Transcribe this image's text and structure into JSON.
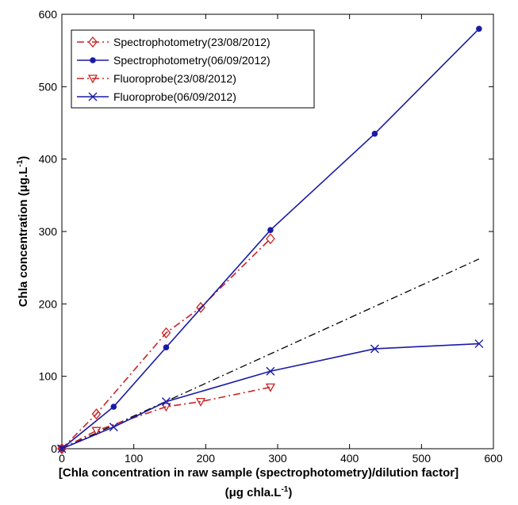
{
  "chart_data": {
    "type": "line",
    "title": "",
    "xlabel_line1": "[Chla concentration in raw sample (spectrophotometry)/dilution factor]",
    "xlabel_line2_prefix": "(μg chla.L",
    "xlabel_line2_sup": "-1",
    "xlabel_line2_suffix": ")",
    "ylabel_prefix": "Chla concentration (μg.L",
    "ylabel_sup": "-1",
    "ylabel_suffix": ")",
    "xlim": [
      0,
      600
    ],
    "ylim": [
      0,
      600
    ],
    "xticks": [
      "0",
      "100",
      "200",
      "300",
      "400",
      "500",
      "600"
    ],
    "yticks": [
      "0",
      "100",
      "200",
      "300",
      "400",
      "500",
      "600"
    ],
    "grid": false,
    "legend_position": "top-left",
    "series": [
      {
        "name": "Spectrophotometry(23/08/2012)",
        "color": "#cc2222",
        "line_style": "dashdot",
        "marker": "diamond",
        "x": [
          0,
          48,
          145,
          193,
          290
        ],
        "y": [
          0,
          48,
          160,
          195,
          290
        ]
      },
      {
        "name": "Spectrophotometry(06/09/2012)",
        "color": "#1a1aa6",
        "line_style": "solid",
        "marker": "dot",
        "x": [
          0,
          72,
          145,
          290,
          435,
          580
        ],
        "y": [
          0,
          58,
          140,
          302,
          435,
          580
        ]
      },
      {
        "name": "Fluoroprobe(23/08/2012)",
        "color": "#cc2222",
        "line_style": "dashdot",
        "marker": "triangle-down",
        "x": [
          0,
          48,
          145,
          193,
          290
        ],
        "y": [
          0,
          25,
          58,
          65,
          85
        ]
      },
      {
        "name": "Fluoroprobe(06/09/2012)",
        "color": "#1a1aa6",
        "line_style": "solid",
        "marker": "x",
        "x": [
          0,
          72,
          145,
          290,
          435,
          580
        ],
        "y": [
          0,
          30,
          65,
          107,
          138,
          145
        ]
      }
    ],
    "reference_line": {
      "color": "#000000",
      "line_style": "dashdot",
      "x": [
        0,
        580
      ],
      "y": [
        0,
        262
      ]
    }
  }
}
